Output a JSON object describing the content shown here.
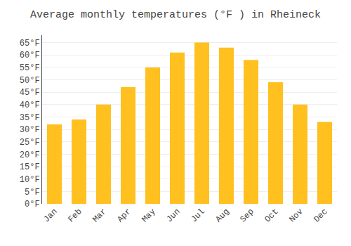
{
  "chart_data": {
    "type": "bar",
    "title": "Average monthly temperatures (°F ) in Rheineck",
    "categories": [
      "Jan",
      "Feb",
      "Mar",
      "Apr",
      "May",
      "Jun",
      "Jul",
      "Aug",
      "Sep",
      "Oct",
      "Nov",
      "Dec"
    ],
    "values": [
      32,
      34,
      40,
      47,
      55,
      61,
      65,
      63,
      58,
      49,
      40,
      33
    ],
    "color": "#FFC020",
    "ylim": [
      0,
      68
    ],
    "yticks": [
      {
        "value": 0,
        "label": "0°F"
      },
      {
        "value": 5,
        "label": "5°F"
      },
      {
        "value": 10,
        "label": "10°F"
      },
      {
        "value": 15,
        "label": "15°F"
      },
      {
        "value": 20,
        "label": "20°F"
      },
      {
        "value": 25,
        "label": "25°F"
      },
      {
        "value": 30,
        "label": "30°F"
      },
      {
        "value": 35,
        "label": "35°F"
      },
      {
        "value": 40,
        "label": "40°F"
      },
      {
        "value": 45,
        "label": "45°F"
      },
      {
        "value": 50,
        "label": "50°F"
      },
      {
        "value": 55,
        "label": "55°F"
      },
      {
        "value": 60,
        "label": "60°F"
      },
      {
        "value": 65,
        "label": "65°F"
      }
    ],
    "grid": true
  }
}
